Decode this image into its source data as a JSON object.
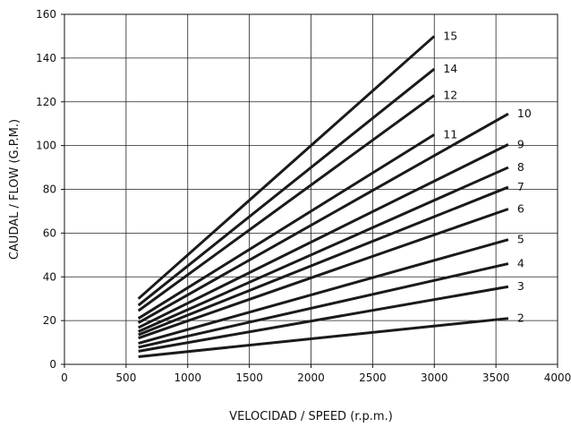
{
  "chart_data": {
    "type": "line",
    "title": "",
    "xlabel": "VELOCIDAD / SPEED (r.p.m.)",
    "ylabel": "CAUDAL / FLOW (G.P.M.)",
    "xlim": [
      0,
      4000
    ],
    "ylim": [
      0,
      160
    ],
    "xticks": [
      0,
      500,
      1000,
      1500,
      2000,
      2500,
      3000,
      3500,
      4000
    ],
    "yticks": [
      0,
      20,
      40,
      60,
      80,
      100,
      120,
      140,
      160
    ],
    "grid": true,
    "legend": "inline labels at line ends",
    "series": [
      {
        "name": "2",
        "x": [
          600,
          3600
        ],
        "y": [
          3.5,
          21
        ]
      },
      {
        "name": "3",
        "x": [
          600,
          3600
        ],
        "y": [
          6,
          35.5
        ]
      },
      {
        "name": "4",
        "x": [
          600,
          3600
        ],
        "y": [
          7.8,
          46
        ]
      },
      {
        "name": "5",
        "x": [
          600,
          3600
        ],
        "y": [
          9.6,
          57
        ]
      },
      {
        "name": "6",
        "x": [
          600,
          3600
        ],
        "y": [
          12,
          71
        ]
      },
      {
        "name": "7",
        "x": [
          600,
          3600
        ],
        "y": [
          13.5,
          81
        ]
      },
      {
        "name": "8",
        "x": [
          600,
          3600
        ],
        "y": [
          15,
          90
        ]
      },
      {
        "name": "9",
        "x": [
          600,
          3600
        ],
        "y": [
          16.8,
          100.5
        ]
      },
      {
        "name": "10",
        "x": [
          600,
          3600
        ],
        "y": [
          19,
          114.5
        ]
      },
      {
        "name": "11",
        "x": [
          600,
          3000
        ],
        "y": [
          21,
          105
        ]
      },
      {
        "name": "12",
        "x": [
          600,
          3000
        ],
        "y": [
          24.5,
          123
        ]
      },
      {
        "name": "14",
        "x": [
          600,
          3000
        ],
        "y": [
          27,
          135
        ]
      },
      {
        "name": "15",
        "x": [
          600,
          3000
        ],
        "y": [
          30,
          150
        ]
      }
    ]
  }
}
